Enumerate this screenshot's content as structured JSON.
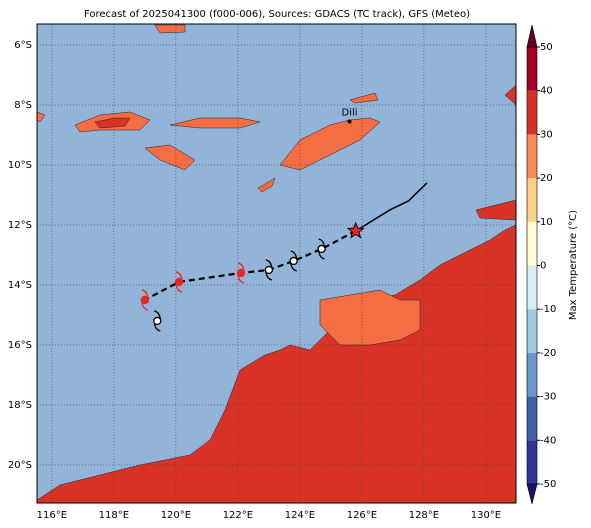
{
  "map": {
    "title": "Forecast of 2025041300 (f000-006), Sources: GDACS (TC track), GFS (Meteo)",
    "xlim": [
      115.52,
      130.97
    ],
    "ylim": [
      -5.3,
      -21.27
    ],
    "xticks": [
      {
        "value": 116,
        "label": "116°E"
      },
      {
        "value": 118,
        "label": "118°E"
      },
      {
        "value": 120,
        "label": "120°E"
      },
      {
        "value": 122,
        "label": "122°E"
      },
      {
        "value": 124,
        "label": "124°E"
      },
      {
        "value": 126,
        "label": "126°E"
      },
      {
        "value": 128,
        "label": "128°E"
      },
      {
        "value": 130,
        "label": "130°E"
      }
    ],
    "yticks": [
      {
        "value": -6,
        "label": "6°S"
      },
      {
        "value": -8,
        "label": "8°S"
      },
      {
        "value": -10,
        "label": "10°S"
      },
      {
        "value": -12,
        "label": "12°S"
      },
      {
        "value": -14,
        "label": "14°S"
      },
      {
        "value": -16,
        "label": "16°S"
      },
      {
        "value": -18,
        "label": "18°S"
      },
      {
        "value": -20,
        "label": "20°S"
      }
    ],
    "place": {
      "name": "Dili",
      "lon": 125.6,
      "lat": -8.55
    },
    "past_track": {
      "lon": [
        128.1,
        127.5,
        126.9,
        125.8
      ],
      "lat": [
        -10.6,
        -11.2,
        -11.5,
        -12.2
      ]
    },
    "current": {
      "lon": 125.8,
      "lat": -12.2,
      "color": "#e8261c"
    },
    "forecast": [
      {
        "lon": 124.7,
        "lat": -12.8,
        "color": "#000000"
      },
      {
        "lon": 123.8,
        "lat": -13.2,
        "color": "#000000"
      },
      {
        "lon": 123.0,
        "lat": -13.5,
        "color": "#000000"
      },
      {
        "lon": 122.1,
        "lat": -13.6,
        "color": "#e8261c"
      },
      {
        "lon": 120.1,
        "lat": -13.9,
        "color": "#e8261c"
      },
      {
        "lon": 119.0,
        "lat": -14.5,
        "color": "#e8261c"
      },
      {
        "lon": 119.4,
        "lat": -15.2,
        "color": "#000000"
      }
    ],
    "colorbar": {
      "label": "Max Temperature (°C)",
      "lim": [
        -50,
        50
      ],
      "ticks": [
        -50,
        -40,
        -30,
        -20,
        -10,
        0,
        10,
        20,
        30,
        40,
        50
      ],
      "colors": [
        "#313695",
        "#4060a8",
        "#6a98c8",
        "#9ec9e0",
        "#d7eef4",
        "#fdfbd2",
        "#fdd08a",
        "#f78c58",
        "#d73027",
        "#a50026"
      ]
    }
  }
}
